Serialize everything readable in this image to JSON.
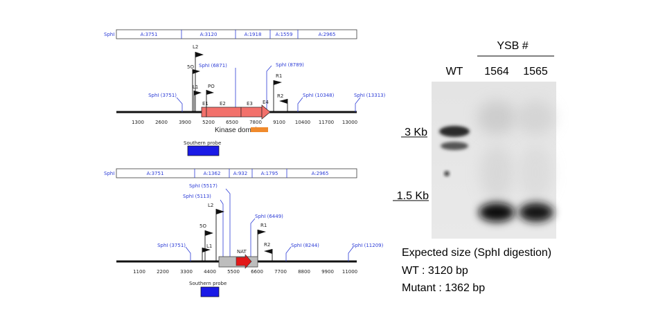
{
  "colors": {
    "label_blue": "#2b3bd6",
    "exon": "#f2716b",
    "kinase": "#f08a2c",
    "probe": "#1a1ae6",
    "nat_box": "#bdbdbd",
    "nat_arrow": "#e21818"
  },
  "wt_map": {
    "fragment_bar": [
      "SphI",
      "A:3751",
      "A:3120",
      "A:1918",
      "A:1559",
      "A:2965"
    ],
    "sites": [
      {
        "label": "SphI (3751)",
        "x": 3751
      },
      {
        "label": "SphI (6871)",
        "x": 6871
      },
      {
        "label": "SphI (8789)",
        "x": 8789
      },
      {
        "label": "SphI (10348)",
        "x": 10348
      },
      {
        "label": "SphI (13313)",
        "x": 13313
      }
    ],
    "ticks": [
      "1300",
      "2600",
      "3900",
      "5200",
      "6500",
      "7800",
      "9100",
      "10400",
      "11700",
      "13000"
    ],
    "primers": [
      "L2",
      "5O",
      "L1",
      "PO",
      "R1",
      "R2"
    ],
    "exons": [
      "E1",
      "E2",
      "E3",
      "E4"
    ],
    "domain_label": "Kinase domain",
    "probe_label": "Southern probe"
  },
  "mut_map": {
    "fragment_bar": [
      "SphI",
      "A:3751",
      "A:1362",
      "A:932",
      "A:1795",
      "A:2965"
    ],
    "sites": [
      {
        "label": "SphI (3751)",
        "x": 3751
      },
      {
        "label": "SphI (5113)",
        "x": 5113
      },
      {
        "label": "SphI (5517)",
        "x": 5517
      },
      {
        "label": "SphI (6449)",
        "x": 6449
      },
      {
        "label": "SphI (8244)",
        "x": 8244
      },
      {
        "label": "SphI (11209)",
        "x": 11209
      }
    ],
    "ticks": [
      "1100",
      "2200",
      "3300",
      "4400",
      "5500",
      "6600",
      "7700",
      "8800",
      "9900",
      "11000"
    ],
    "primers": [
      "5O",
      "L2",
      "L1",
      "R1",
      "R2"
    ],
    "marker_label": "NAT",
    "probe_label": "Southern probe"
  },
  "gel": {
    "group_label": "YSB #",
    "lanes": [
      "WT",
      "1564",
      "1565"
    ],
    "markers": [
      "3 Kb",
      "1.5 Kb"
    ]
  },
  "expected": {
    "title": "Expected size (SphI digestion)",
    "wt": "WT : 3120 bp",
    "mutant": "Mutant : 1362 bp"
  }
}
